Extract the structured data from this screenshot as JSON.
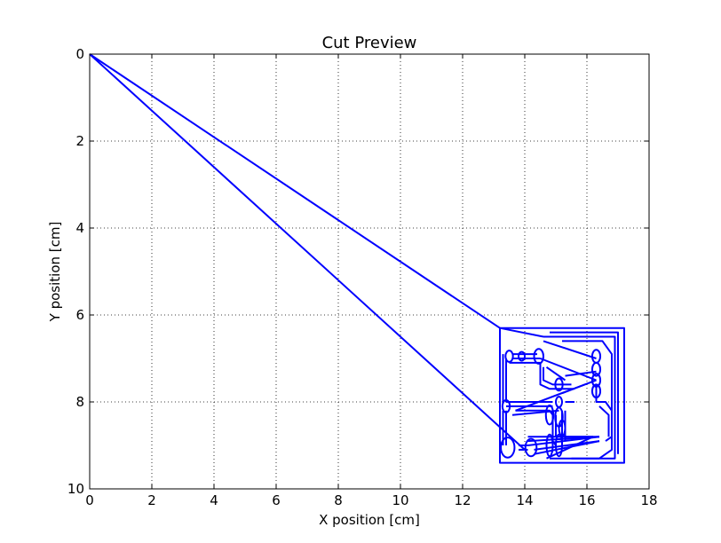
{
  "chart_data": {
    "type": "line",
    "title": "Cut Preview",
    "xlabel": "X position [cm]",
    "ylabel": "Y position [cm]",
    "xlim": [
      0,
      18
    ],
    "ylim": [
      0,
      10
    ],
    "y_inverted": true,
    "grid": true,
    "x_ticks": [
      "0",
      "2",
      "4",
      "6",
      "8",
      "10",
      "12",
      "14",
      "16",
      "18"
    ],
    "y_ticks": [
      "0",
      "2",
      "4",
      "6",
      "8",
      "10"
    ],
    "line_color": "#0000ff",
    "series": [
      {
        "points": [
          [
            0,
            0
          ],
          [
            13.2,
            6.3
          ],
          [
            17.2,
            6.3
          ],
          [
            17.2,
            9.4
          ],
          [
            13.2,
            9.4
          ],
          [
            13.2,
            6.3
          ]
        ]
      },
      {
        "points": [
          [
            0,
            0
          ],
          [
            14.0,
            9.1
          ]
        ]
      },
      {
        "points": [
          [
            13.2,
            6.3
          ],
          [
            14.6,
            6.5
          ]
        ]
      },
      {
        "points": [
          [
            14.6,
            6.5
          ],
          [
            16.9,
            6.5
          ],
          [
            16.9,
            9.3
          ],
          [
            14.8,
            9.3
          ]
        ]
      },
      {
        "points": [
          [
            14.8,
            6.4
          ],
          [
            17.0,
            6.4
          ],
          [
            17.0,
            9.2
          ]
        ]
      },
      {
        "points": [
          [
            15.2,
            6.6
          ],
          [
            16.5,
            6.6
          ],
          [
            16.8,
            6.9
          ],
          [
            16.8,
            9.1
          ],
          [
            16.4,
            9.3
          ],
          [
            15.5,
            9.3
          ]
        ]
      },
      {
        "points": [
          [
            14.6,
            6.6
          ],
          [
            16.3,
            7.0
          ]
        ]
      },
      {
        "points": [
          [
            13.6,
            6.9
          ],
          [
            14.4,
            6.9
          ]
        ]
      },
      {
        "points": [
          [
            13.6,
            7.0
          ],
          [
            14.5,
            7.0
          ]
        ]
      },
      {
        "points": [
          [
            13.5,
            7.1
          ],
          [
            14.5,
            7.1
          ]
        ]
      },
      {
        "points": [
          [
            14.5,
            7.0
          ],
          [
            16.3,
            7.5
          ]
        ]
      },
      {
        "points": [
          [
            14.7,
            7.2
          ],
          [
            15.3,
            7.5
          ]
        ]
      },
      {
        "points": [
          [
            14.5,
            7.1
          ],
          [
            14.5,
            7.6
          ],
          [
            14.8,
            7.7
          ],
          [
            15.6,
            7.7
          ]
        ]
      },
      {
        "points": [
          [
            14.6,
            7.2
          ],
          [
            14.6,
            7.5
          ],
          [
            14.9,
            7.6
          ],
          [
            15.5,
            7.6
          ]
        ]
      },
      {
        "points": [
          [
            15.3,
            7.4
          ],
          [
            16.3,
            7.3
          ]
        ]
      },
      {
        "points": [
          [
            15.2,
            7.8
          ],
          [
            16.3,
            7.5
          ]
        ]
      },
      {
        "points": [
          [
            16.3,
            7.6
          ],
          [
            16.3,
            8.0
          ],
          [
            16.6,
            8.0
          ],
          [
            16.8,
            8.2
          ],
          [
            16.8,
            8.8
          ],
          [
            16.6,
            8.9
          ]
        ]
      },
      {
        "points": [
          [
            16.4,
            8.1
          ],
          [
            16.7,
            8.3
          ],
          [
            16.7,
            8.8
          ]
        ]
      },
      {
        "points": [
          [
            15.3,
            8.0
          ],
          [
            15.6,
            8.0
          ]
        ]
      },
      {
        "points": [
          [
            13.4,
            8.0
          ],
          [
            14.9,
            8.0
          ]
        ]
      },
      {
        "points": [
          [
            13.4,
            8.1
          ],
          [
            14.9,
            8.1
          ]
        ]
      },
      {
        "points": [
          [
            13.7,
            8.2
          ],
          [
            14.8,
            8.2
          ],
          [
            14.9,
            8.3
          ]
        ]
      },
      {
        "points": [
          [
            13.6,
            8.3
          ],
          [
            15.1,
            8.2
          ]
        ]
      },
      {
        "points": [
          [
            13.7,
            8.2
          ],
          [
            16.3,
            7.5
          ]
        ]
      },
      {
        "points": [
          [
            13.3,
            6.9
          ],
          [
            13.3,
            8.0
          ]
        ]
      },
      {
        "points": [
          [
            13.4,
            7.0
          ],
          [
            13.4,
            8.0
          ]
        ]
      },
      {
        "points": [
          [
            13.3,
            8.2
          ],
          [
            13.3,
            9.0
          ]
        ]
      },
      {
        "points": [
          [
            13.4,
            8.2
          ],
          [
            13.4,
            9.0
          ]
        ]
      },
      {
        "points": [
          [
            14.9,
            8.2
          ],
          [
            14.9,
            8.9
          ],
          [
            15.0,
            9.0
          ]
        ]
      },
      {
        "points": [
          [
            15.0,
            8.3
          ],
          [
            15.0,
            8.8
          ]
        ]
      },
      {
        "points": [
          [
            15.2,
            8.2
          ],
          [
            15.2,
            9.0
          ]
        ]
      },
      {
        "points": [
          [
            15.3,
            8.2
          ],
          [
            15.3,
            8.9
          ]
        ]
      },
      {
        "points": [
          [
            14.1,
            8.8
          ],
          [
            16.2,
            8.8
          ]
        ]
      },
      {
        "points": [
          [
            14.1,
            8.9
          ],
          [
            16.4,
            8.8
          ]
        ]
      },
      {
        "points": [
          [
            14.1,
            9.0
          ],
          [
            16.4,
            8.8
          ]
        ]
      },
      {
        "points": [
          [
            14.3,
            9.1
          ],
          [
            16.4,
            8.9
          ]
        ]
      },
      {
        "points": [
          [
            14.3,
            9.2
          ],
          [
            16.4,
            8.9
          ]
        ]
      },
      {
        "points": [
          [
            14.7,
            9.3
          ],
          [
            16.2,
            8.8
          ]
        ]
      },
      {
        "points": [
          [
            15.0,
            8.8
          ],
          [
            16.4,
            8.8
          ]
        ]
      },
      {
        "points": [
          [
            13.8,
            9.0
          ],
          [
            14.1,
            9.0
          ]
        ]
      },
      {
        "points": [
          [
            13.8,
            9.1
          ],
          [
            14.1,
            9.1
          ]
        ]
      }
    ],
    "ellipses": [
      {
        "cx": 13.5,
        "cy": 6.95,
        "rx": 0.12,
        "ry": 0.13
      },
      {
        "cx": 13.9,
        "cy": 6.95,
        "rx": 0.1,
        "ry": 0.1
      },
      {
        "cx": 14.45,
        "cy": 6.95,
        "rx": 0.15,
        "ry": 0.17
      },
      {
        "cx": 16.3,
        "cy": 6.95,
        "rx": 0.13,
        "ry": 0.15
      },
      {
        "cx": 16.3,
        "cy": 7.25,
        "rx": 0.13,
        "ry": 0.15
      },
      {
        "cx": 16.3,
        "cy": 7.5,
        "rx": 0.13,
        "ry": 0.15
      },
      {
        "cx": 16.3,
        "cy": 7.75,
        "rx": 0.13,
        "ry": 0.15
      },
      {
        "cx": 15.1,
        "cy": 7.6,
        "rx": 0.12,
        "ry": 0.14
      },
      {
        "cx": 15.1,
        "cy": 8.0,
        "rx": 0.1,
        "ry": 0.12
      },
      {
        "cx": 13.4,
        "cy": 8.1,
        "rx": 0.12,
        "ry": 0.14
      },
      {
        "cx": 14.8,
        "cy": 8.3,
        "rx": 0.12,
        "ry": 0.22
      },
      {
        "cx": 15.1,
        "cy": 8.35,
        "rx": 0.12,
        "ry": 0.22
      },
      {
        "cx": 15.2,
        "cy": 8.6,
        "rx": 0.1,
        "ry": 0.18
      },
      {
        "cx": 13.45,
        "cy": 9.05,
        "rx": 0.22,
        "ry": 0.23
      },
      {
        "cx": 14.2,
        "cy": 9.05,
        "rx": 0.18,
        "ry": 0.2
      },
      {
        "cx": 14.8,
        "cy": 9.0,
        "rx": 0.1,
        "ry": 0.25
      },
      {
        "cx": 15.1,
        "cy": 9.0,
        "rx": 0.1,
        "ry": 0.25
      }
    ]
  }
}
